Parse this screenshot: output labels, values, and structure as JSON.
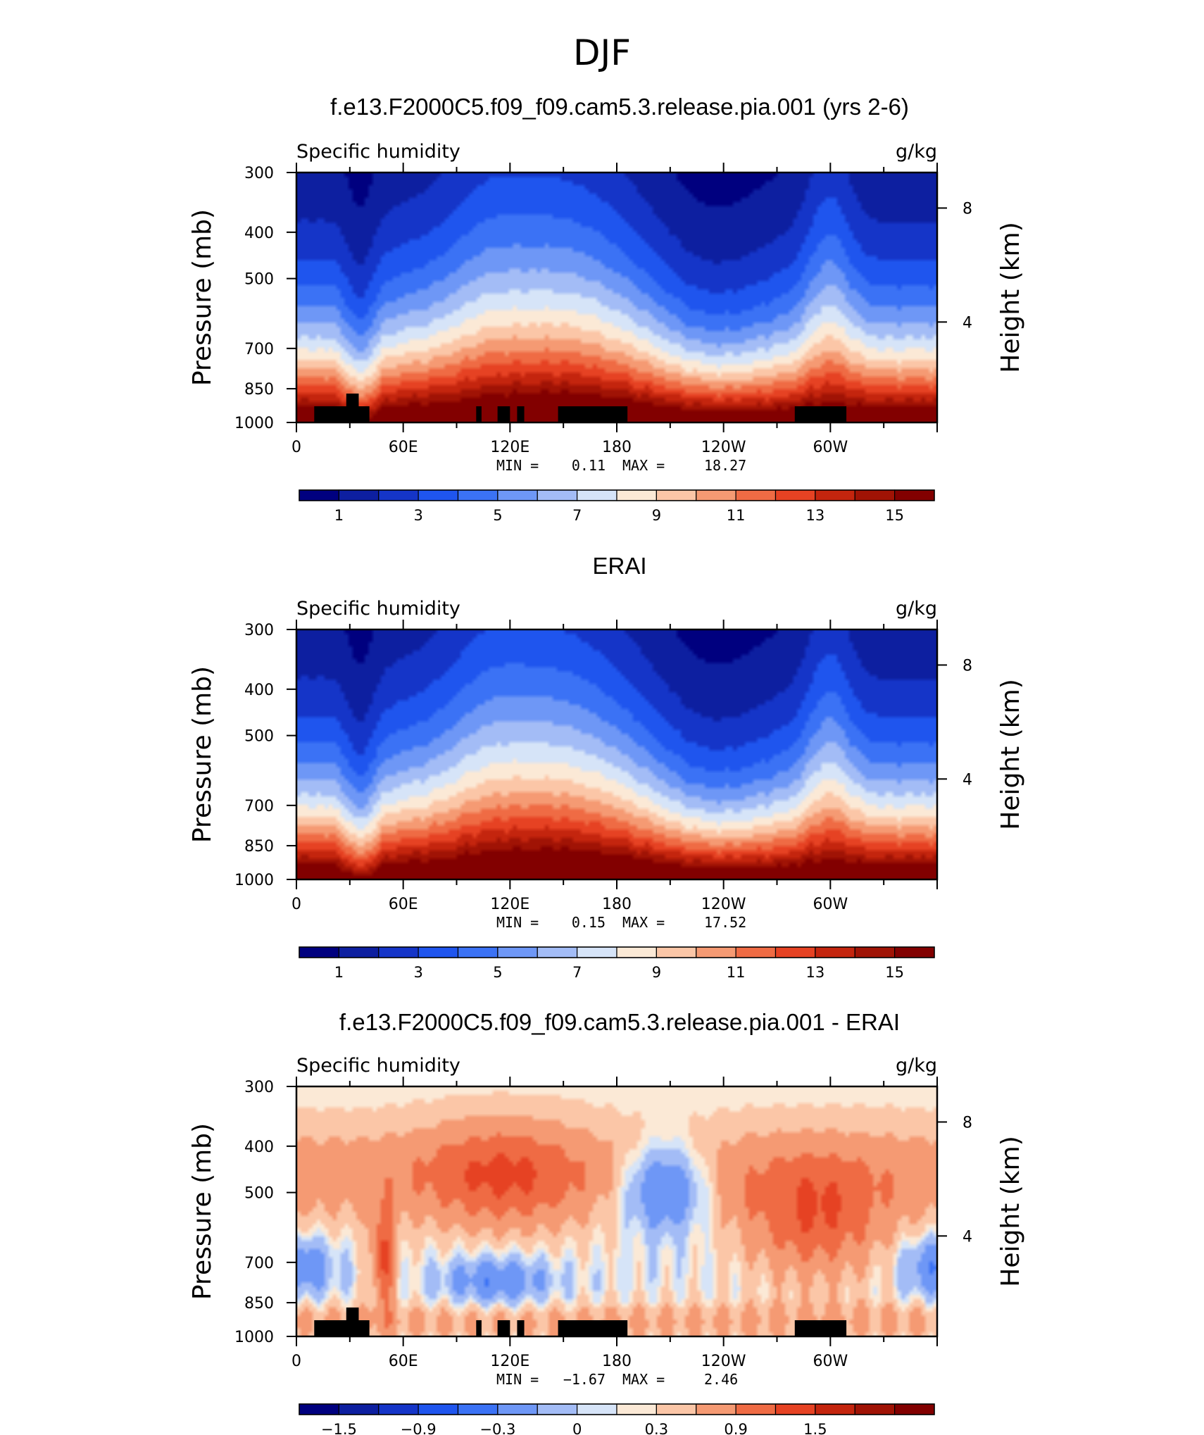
{
  "figure_title": "DJF",
  "chart_data": [
    {
      "type": "heatmap",
      "title": "f.e13.F2000C5.f09_f09.cam5.3.release.pia.001 (yrs 2-6)",
      "left_string": "Specific humidity",
      "right_string": "g/kg",
      "ylabel": "Pressure (mb)",
      "ylabel_right": "Height (km)",
      "x_ticks": [
        "0",
        "60E",
        "120E",
        "180",
        "120W",
        "60W"
      ],
      "y_ticks": [
        "300",
        "400",
        "500",
        "700",
        "850",
        "1000"
      ],
      "y2_ticks": [
        "8",
        "4"
      ],
      "min_label": "MIN =",
      "min_value": "0.11",
      "max_label": "MAX =",
      "max_value": "18.27",
      "colorbar_labels": [
        "1",
        "3",
        "5",
        "7",
        "9",
        "11",
        "13",
        "15"
      ],
      "colors": [
        "#00007f",
        "#0d1fa0",
        "#1535c8",
        "#1f55ee",
        "#3b72f5",
        "#6e97f6",
        "#a3bcf6",
        "#d6e4f8",
        "#fbe9d6",
        "#fbc6a7",
        "#f59a73",
        "#ef6b44",
        "#e64223",
        "#c4250e",
        "#a01305",
        "#820000"
      ],
      "levels": [
        1,
        2,
        3,
        4,
        5,
        6,
        7,
        8,
        9,
        10,
        11,
        12,
        13,
        14,
        15
      ],
      "has_topography": true
    },
    {
      "type": "heatmap",
      "title": "ERAI",
      "left_string": "Specific humidity",
      "right_string": "g/kg",
      "ylabel": "Pressure (mb)",
      "ylabel_right": "Height (km)",
      "x_ticks": [
        "0",
        "60E",
        "120E",
        "180",
        "120W",
        "60W"
      ],
      "y_ticks": [
        "300",
        "400",
        "500",
        "700",
        "850",
        "1000"
      ],
      "y2_ticks": [
        "8",
        "4"
      ],
      "min_label": "MIN =",
      "min_value": "0.15",
      "max_label": "MAX =",
      "max_value": "17.52",
      "colorbar_labels": [
        "1",
        "3",
        "5",
        "7",
        "9",
        "11",
        "13",
        "15"
      ],
      "colors": [
        "#00007f",
        "#0d1fa0",
        "#1535c8",
        "#1f55ee",
        "#3b72f5",
        "#6e97f6",
        "#a3bcf6",
        "#d6e4f8",
        "#fbe9d6",
        "#fbc6a7",
        "#f59a73",
        "#ef6b44",
        "#e64223",
        "#c4250e",
        "#a01305",
        "#820000"
      ],
      "levels": [
        1,
        2,
        3,
        4,
        5,
        6,
        7,
        8,
        9,
        10,
        11,
        12,
        13,
        14,
        15
      ],
      "has_topography": false
    },
    {
      "type": "heatmap",
      "title": "f.e13.F2000C5.f09_f09.cam5.3.release.pia.001 - ERAI",
      "left_string": "Specific humidity",
      "right_string": "g/kg",
      "ylabel": "Pressure (mb)",
      "ylabel_right": "Height (km)",
      "x_ticks": [
        "0",
        "60E",
        "120E",
        "180",
        "120W",
        "60W"
      ],
      "y_ticks": [
        "300",
        "400",
        "500",
        "700",
        "850",
        "1000"
      ],
      "y2_ticks": [
        "8",
        "4"
      ],
      "min_label": "MIN =",
      "min_value": "−1.67",
      "max_label": "MAX =",
      "max_value": "2.46",
      "colorbar_labels": [
        "−1.5",
        "−0.9",
        "−0.3",
        "0",
        "0.3",
        "0.9",
        "1.5"
      ],
      "colors": [
        "#00007f",
        "#0d1fa0",
        "#1535c8",
        "#1f55ee",
        "#3b72f5",
        "#6e97f6",
        "#a3bcf6",
        "#d6e4f8",
        "#fbe9d6",
        "#fbc6a7",
        "#f59a73",
        "#ef6b44",
        "#e64223",
        "#c4250e",
        "#a01305",
        "#820000"
      ],
      "levels": [
        -1.8,
        -1.5,
        -1.2,
        -0.9,
        -0.6,
        -0.3,
        -0.1,
        0,
        0.1,
        0.3,
        0.6,
        0.9,
        1.2,
        1.5,
        1.8
      ],
      "has_topography": true
    }
  ]
}
